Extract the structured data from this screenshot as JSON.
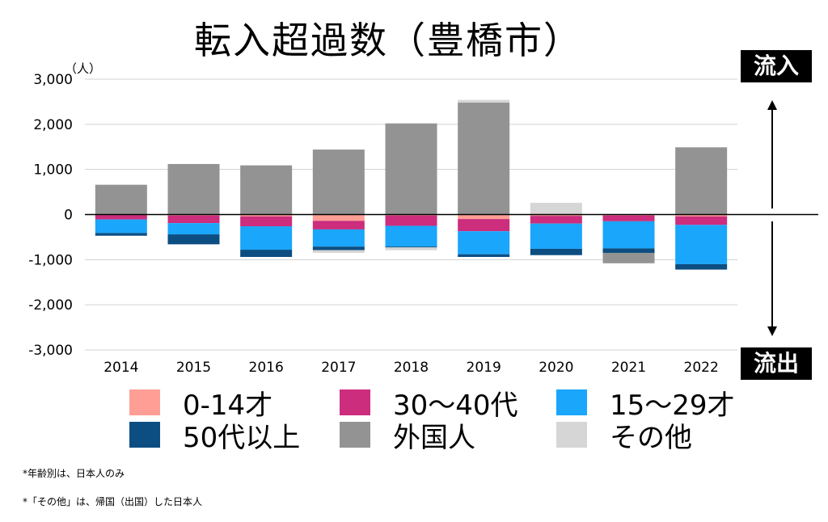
{
  "title": "転入超過数（豊橋市）",
  "flow_in_label": "流入",
  "flow_out_label": "流出",
  "notes": [
    "*年齢別は、日本人のみ",
    "*「その他」は、帰国（出国）した日本人"
  ],
  "chart_data": {
    "type": "bar",
    "stacked": true,
    "title": "転入超過数（豊橋市）",
    "ylabel": "（人）",
    "xlabel": "",
    "ylim": [
      -3000,
      3000
    ],
    "yticks": [
      3000,
      2000,
      1000,
      0,
      -1000,
      -2000,
      -3000
    ],
    "ytick_labels": [
      "3,000",
      "2,000",
      "1,000",
      "0",
      "-1,000",
      "-2,000",
      "-3,000"
    ],
    "grid": true,
    "legend_position": "bottom",
    "categories": [
      "2014",
      "2015",
      "2016",
      "2017",
      "2018",
      "2019",
      "2020",
      "2021",
      "2022"
    ],
    "series": [
      {
        "name": "0-14才",
        "color": "#ff9e95",
        "values": [
          -10,
          -20,
          -40,
          -140,
          -20,
          -100,
          -30,
          -20,
          -40
        ]
      },
      {
        "name": "30〜40代",
        "color": "#cc2d7d",
        "values": [
          -100,
          -170,
          -220,
          -190,
          -230,
          -270,
          -170,
          -130,
          -190
        ]
      },
      {
        "name": "15〜29才",
        "color": "#1aa6fa",
        "values": [
          -300,
          -250,
          -520,
          -380,
          -460,
          -510,
          -560,
          -600,
          -870
        ]
      },
      {
        "name": "50代以上",
        "color": "#0c4e82",
        "values": [
          -60,
          -220,
          -160,
          -80,
          -20,
          -60,
          -140,
          -100,
          -120
        ]
      },
      {
        "name": "外国人",
        "color": "#939393",
        "values": [
          660,
          1120,
          1090,
          1440,
          2020,
          2480,
          0,
          -230,
          1490
        ]
      },
      {
        "name": "その他",
        "color": "#d6d6d6",
        "values": [
          0,
          0,
          0,
          -60,
          -60,
          60,
          260,
          0,
          0
        ]
      }
    ]
  }
}
